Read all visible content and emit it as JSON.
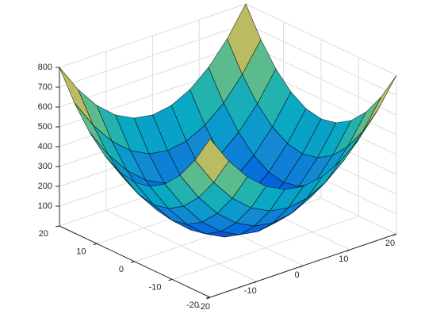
{
  "chart_data": {
    "type": "surface",
    "colormap": "parula",
    "grid": true,
    "edge_color": "#000000",
    "x": [
      -20,
      -16,
      -12,
      -8,
      -4,
      0,
      4,
      8,
      12,
      16,
      20
    ],
    "y": [
      -20,
      -16,
      -12,
      -8,
      -4,
      0,
      4,
      8,
      12,
      16,
      20
    ],
    "z": [
      [
        800,
        656,
        544,
        464,
        416,
        400,
        416,
        464,
        544,
        656,
        800
      ],
      [
        656,
        512,
        400,
        320,
        272,
        256,
        272,
        320,
        400,
        512,
        656
      ],
      [
        544,
        400,
        288,
        208,
        160,
        144,
        160,
        208,
        288,
        400,
        544
      ],
      [
        464,
        320,
        208,
        128,
        80,
        64,
        80,
        128,
        208,
        320,
        464
      ],
      [
        416,
        272,
        160,
        80,
        32,
        16,
        32,
        80,
        160,
        272,
        416
      ],
      [
        400,
        256,
        144,
        64,
        16,
        0,
        16,
        64,
        144,
        256,
        400
      ],
      [
        416,
        272,
        160,
        80,
        32,
        16,
        32,
        80,
        160,
        272,
        416
      ],
      [
        464,
        320,
        208,
        128,
        80,
        64,
        80,
        128,
        208,
        320,
        464
      ],
      [
        544,
        400,
        288,
        208,
        160,
        144,
        160,
        208,
        288,
        400,
        544
      ],
      [
        656,
        512,
        400,
        320,
        272,
        256,
        272,
        320,
        400,
        512,
        656
      ],
      [
        800,
        656,
        544,
        464,
        416,
        400,
        416,
        464,
        544,
        656,
        800
      ]
    ],
    "xlim": [
      -20,
      20
    ],
    "ylim": [
      -20,
      20
    ],
    "zlim": [
      0,
      800
    ],
    "xticks": [
      -20,
      -10,
      0,
      10,
      20
    ],
    "yticks": [
      -20,
      -10,
      0,
      10,
      20
    ],
    "zticks": [
      100,
      200,
      300,
      400,
      500,
      600,
      700,
      800
    ]
  }
}
